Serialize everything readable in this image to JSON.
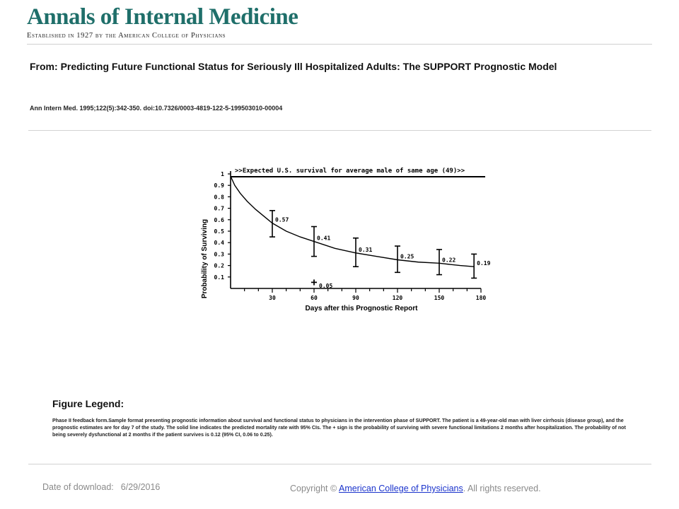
{
  "header": {
    "journal_title": "Annals of Internal Medicine",
    "tagline": "Established in 1927 by the American College of Physicians",
    "brand_color": "#1f6f6a"
  },
  "article": {
    "from_prefix": "From:",
    "title": "Predicting Future Functional Status for Seriously Ill Hospitalized Adults: The SUPPORT Prognostic Model",
    "citation": "Ann Intern Med. 1995;122(5):342-350. doi:10.7326/0003-4819-122-5-199503010-00004"
  },
  "chart_data": {
    "type": "line",
    "title": ">>Expected U.S. survival for average male of same age (49)>>",
    "xlabel": "Days after this Prognostic Report",
    "ylabel": "Probability of Surviving",
    "xlim": [
      0,
      180
    ],
    "ylim": [
      0,
      1
    ],
    "x_ticks": [
      30,
      60,
      90,
      120,
      150,
      180
    ],
    "y_ticks": [
      0.1,
      0.2,
      0.3,
      0.4,
      0.5,
      0.6,
      0.7,
      0.8,
      0.9,
      1
    ],
    "y_tick_labels": [
      "0.1",
      "0.2",
      "0.3",
      "0.4",
      "0.5",
      "0.6",
      "0.7",
      "0.8",
      "0.9",
      "1"
    ],
    "expected_survival": 1.0,
    "curve": {
      "x": [
        0,
        3,
        7,
        12,
        18,
        25,
        30,
        40,
        50,
        60,
        75,
        90,
        105,
        120,
        135,
        150,
        165,
        175
      ],
      "y": [
        0.98,
        0.9,
        0.83,
        0.76,
        0.69,
        0.62,
        0.57,
        0.5,
        0.45,
        0.41,
        0.35,
        0.31,
        0.28,
        0.25,
        0.23,
        0.22,
        0.2,
        0.19
      ]
    },
    "points": [
      {
        "x": 30,
        "y": 0.57,
        "low": 0.45,
        "high": 0.68,
        "label": "0.57"
      },
      {
        "x": 60,
        "y": 0.41,
        "low": 0.28,
        "high": 0.54,
        "label": "0.41"
      },
      {
        "x": 90,
        "y": 0.31,
        "low": 0.19,
        "high": 0.44,
        "label": "0.31"
      },
      {
        "x": 120,
        "y": 0.25,
        "low": 0.14,
        "high": 0.37,
        "label": "0.25"
      },
      {
        "x": 150,
        "y": 0.22,
        "low": 0.12,
        "high": 0.34,
        "label": "0.22"
      },
      {
        "x": 175,
        "y": 0.19,
        "low": 0.09,
        "high": 0.3,
        "label": "0.19"
      }
    ],
    "functional_marker": {
      "x": 60,
      "y": 0.05,
      "symbol": "+",
      "label": "0.05"
    },
    "grid": false
  },
  "figure_legend": {
    "heading": "Figure Legend:",
    "body": "Phase II feedback form.Sample format presenting prognostic information about survival and functional status to physicians in the intervention phase of SUPPORT. The patient is a 49-year-old man with liver cirrhosis (disease group), and the prognostic estimates are for day 7 of the study. The solid line indicates the predicted mortality rate with 95% CIs. The + sign is the probability of surviving with severe functional limitations 2 months after hospitalization. The probability of not being severely dysfunctional at 2 months if the patient survives is 0.12 (95% CI, 0.06 to 0.25)."
  },
  "footer": {
    "download_label": "Date of download:",
    "download_date": "6/29/2016",
    "copyright_prefix": "Copyright ©",
    "copyright_link": "American College of Physicians",
    "copyright_suffix": "All rights reserved.",
    "link_color": "#1a33cc"
  }
}
